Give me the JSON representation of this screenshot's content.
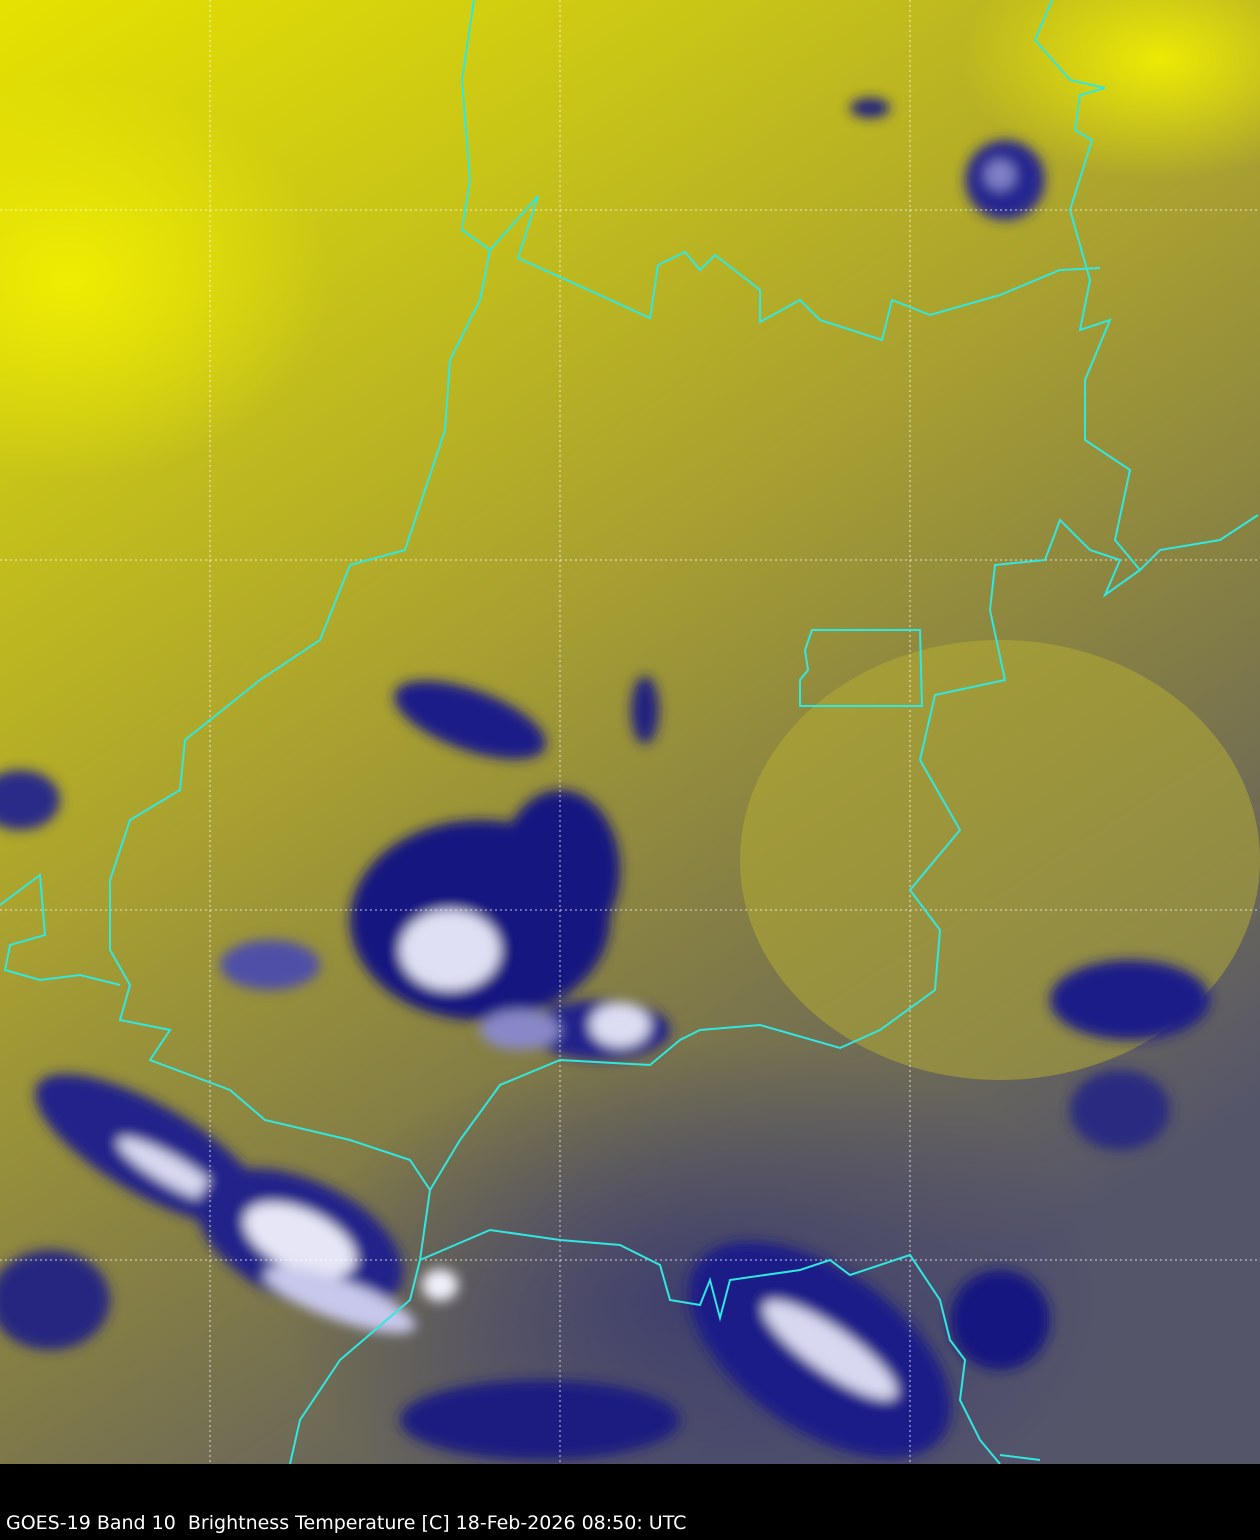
{
  "caption": "GOES-19 Band 10  Brightness Temperature [C] 18-Feb-2026 08:50: UTC",
  "colors": {
    "warm": "#e8e400",
    "mid": "#a8a030",
    "cool": "#6a6a55",
    "cold": "#1a1a80",
    "coldest": "#e8e8f8",
    "border": "#30e8e0",
    "grid": "#ffffff"
  }
}
